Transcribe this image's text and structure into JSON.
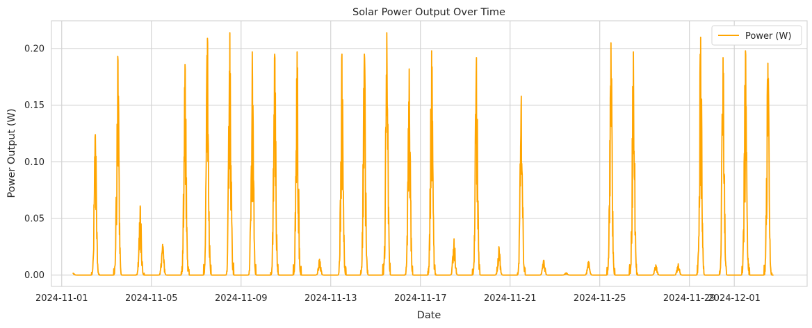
{
  "chart_data": {
    "type": "line",
    "title": "Solar Power Output Over Time",
    "xlabel": "Date",
    "ylabel": "Power Output (W)",
    "x_type": "date",
    "xlim": [
      "2024-10-31T13:00",
      "2024-12-04T06:00"
    ],
    "ylim": [
      -0.01,
      0.2245
    ],
    "x_ticks": [
      "2024-11-01",
      "2024-11-05",
      "2024-11-09",
      "2024-11-13",
      "2024-11-17",
      "2024-11-21",
      "2024-11-25",
      "2024-11-29",
      "2024-12-01"
    ],
    "y_ticks": [
      0.0,
      0.05,
      0.1,
      0.15,
      0.2
    ],
    "y_tick_labels": [
      "0.00",
      "0.05",
      "0.10",
      "0.15",
      "0.20"
    ],
    "grid": true,
    "legend": {
      "position": "top-right"
    },
    "colors": {
      "series": "#ffa500",
      "grid": "#d0d0d0",
      "axes": "#cccccc"
    },
    "series": [
      {
        "name": "Power (W)",
        "x_start": "2024-11-01T12:00",
        "x_end": "2024-12-02T18:00",
        "daily_peaks": [
          {
            "date": "2024-11-01",
            "peak": 0.002
          },
          {
            "date": "2024-11-02",
            "peak": 0.124
          },
          {
            "date": "2024-11-03",
            "peak": 0.193
          },
          {
            "date": "2024-11-04",
            "peak": 0.061
          },
          {
            "date": "2024-11-05",
            "peak": 0.027
          },
          {
            "date": "2024-11-06",
            "peak": 0.186
          },
          {
            "date": "2024-11-07",
            "peak": 0.209
          },
          {
            "date": "2024-11-08",
            "peak": 0.214
          },
          {
            "date": "2024-11-09",
            "peak": 0.197
          },
          {
            "date": "2024-11-10",
            "peak": 0.195
          },
          {
            "date": "2024-11-11",
            "peak": 0.197
          },
          {
            "date": "2024-11-12",
            "peak": 0.014
          },
          {
            "date": "2024-11-13",
            "peak": 0.195
          },
          {
            "date": "2024-11-14",
            "peak": 0.195
          },
          {
            "date": "2024-11-15",
            "peak": 0.214
          },
          {
            "date": "2024-11-16",
            "peak": 0.182
          },
          {
            "date": "2024-11-17",
            "peak": 0.198
          },
          {
            "date": "2024-11-18",
            "peak": 0.032
          },
          {
            "date": "2024-11-19",
            "peak": 0.192
          },
          {
            "date": "2024-11-20",
            "peak": 0.025
          },
          {
            "date": "2024-11-21",
            "peak": 0.158
          },
          {
            "date": "2024-11-22",
            "peak": 0.013
          },
          {
            "date": "2024-11-23",
            "peak": 0.002
          },
          {
            "date": "2024-11-24",
            "peak": 0.012
          },
          {
            "date": "2024-11-25",
            "peak": 0.205
          },
          {
            "date": "2024-11-26",
            "peak": 0.197
          },
          {
            "date": "2024-11-27",
            "peak": 0.009
          },
          {
            "date": "2024-11-28",
            "peak": 0.01
          },
          {
            "date": "2024-11-29",
            "peak": 0.21
          },
          {
            "date": "2024-11-30",
            "peak": 0.192
          },
          {
            "date": "2024-12-01",
            "peak": 0.198
          },
          {
            "date": "2024-12-02",
            "peak": 0.187
          }
        ]
      }
    ]
  }
}
